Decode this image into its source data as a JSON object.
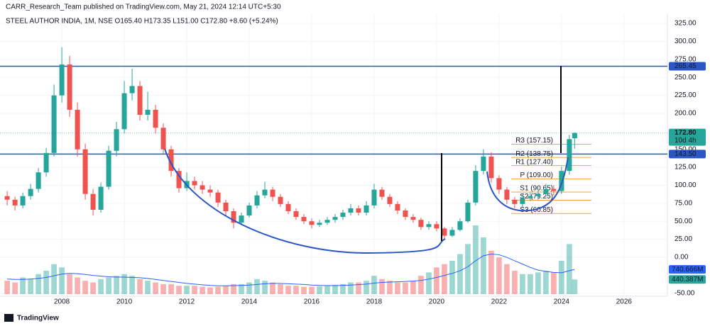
{
  "chart_data": {
    "type": "candlestick",
    "header": "CARR_Research_Team published on TradingView.com, May 21, 2024 12:14 UTC+5:30",
    "title": "STEEL AUTHOR INDIA, 1M, NSE  O165.40  H173.35  L151.00  C172.80  +8.60 (+5.24%)",
    "brand": "TradingView",
    "x": [
      2006.25,
      2006.5,
      2006.75,
      2007,
      2007.25,
      2007.5,
      2007.75,
      2008,
      2008.25,
      2008.5,
      2008.75,
      2009,
      2009.25,
      2009.5,
      2009.75,
      2010,
      2010.25,
      2010.5,
      2010.75,
      2011,
      2011.25,
      2011.5,
      2011.75,
      2012,
      2012.25,
      2012.5,
      2012.75,
      2013,
      2013.25,
      2013.5,
      2013.75,
      2014,
      2014.25,
      2014.5,
      2014.75,
      2015,
      2015.25,
      2015.5,
      2015.75,
      2016,
      2016.25,
      2016.5,
      2016.75,
      2017,
      2017.25,
      2017.5,
      2017.75,
      2018,
      2018.25,
      2018.5,
      2018.75,
      2019,
      2019.25,
      2019.5,
      2019.75,
      2020,
      2020.25,
      2020.5,
      2020.75,
      2021,
      2021.25,
      2021.5,
      2021.75,
      2022,
      2022.25,
      2022.5,
      2022.75,
      2023,
      2023.25,
      2023.5,
      2023.75,
      2024,
      2024.25,
      2024.42
    ],
    "open": [
      85,
      80,
      72,
      85,
      95,
      118,
      145,
      225,
      268,
      205,
      150,
      88,
      66,
      98,
      148,
      178,
      228,
      238,
      198,
      205,
      180,
      150,
      120,
      96,
      106,
      100,
      94,
      90,
      76,
      64,
      48,
      58,
      72,
      86,
      94,
      84,
      74,
      64,
      56,
      50,
      45,
      48,
      52,
      56,
      62,
      68,
      62,
      72,
      94,
      84,
      74,
      65,
      56,
      52,
      42,
      46,
      40,
      30,
      38,
      50,
      76,
      120,
      140,
      110,
      94,
      80,
      74,
      82,
      85,
      88,
      95,
      92,
      120,
      165.4
    ],
    "high": [
      92,
      84,
      90,
      102,
      124,
      152,
      240,
      292,
      280,
      215,
      158,
      95,
      104,
      155,
      188,
      245,
      262,
      245,
      230,
      212,
      186,
      155,
      124,
      118,
      112,
      106,
      100,
      94,
      80,
      68,
      62,
      76,
      92,
      105,
      98,
      88,
      78,
      68,
      60,
      54,
      52,
      56,
      60,
      66,
      74,
      72,
      78,
      102,
      98,
      88,
      78,
      68,
      60,
      55,
      50,
      50,
      42,
      42,
      54,
      80,
      128,
      150,
      146,
      114,
      98,
      84,
      88,
      90,
      94,
      102,
      100,
      126,
      170,
      173.35
    ],
    "low": [
      72,
      65,
      68,
      80,
      90,
      112,
      140,
      215,
      195,
      140,
      80,
      58,
      62,
      94,
      140,
      172,
      218,
      190,
      190,
      172,
      144,
      112,
      90,
      92,
      94,
      88,
      84,
      70,
      58,
      40,
      45,
      55,
      68,
      82,
      78,
      70,
      60,
      52,
      46,
      40,
      42,
      45,
      48,
      52,
      58,
      58,
      58,
      68,
      80,
      70,
      60,
      52,
      48,
      38,
      38,
      36,
      24,
      28,
      36,
      48,
      72,
      115,
      104,
      88,
      74,
      68,
      70,
      78,
      80,
      84,
      86,
      88,
      115,
      151
    ],
    "close": [
      80,
      72,
      85,
      95,
      118,
      145,
      225,
      268,
      205,
      150,
      88,
      66,
      98,
      148,
      178,
      228,
      238,
      198,
      205,
      180,
      150,
      120,
      96,
      106,
      100,
      94,
      90,
      76,
      64,
      48,
      58,
      72,
      86,
      94,
      84,
      74,
      64,
      56,
      50,
      45,
      48,
      52,
      56,
      62,
      68,
      62,
      72,
      94,
      84,
      74,
      65,
      56,
      52,
      42,
      46,
      40,
      30,
      38,
      50,
      76,
      120,
      140,
      110,
      94,
      80,
      74,
      82,
      85,
      88,
      95,
      92,
      120,
      164.2,
      172.8
    ],
    "volume": [
      400,
      350,
      500,
      450,
      600,
      700,
      900,
      800,
      600,
      500,
      400,
      350,
      450,
      500,
      550,
      600,
      550,
      450,
      400,
      350,
      300,
      300,
      250,
      250,
      250,
      220,
      200,
      220,
      250,
      300,
      300,
      350,
      450,
      400,
      350,
      300,
      250,
      250,
      220,
      220,
      230,
      250,
      280,
      300,
      350,
      350,
      400,
      550,
      450,
      400,
      350,
      350,
      400,
      550,
      650,
      800,
      900,
      1000,
      1200,
      1500,
      2060,
      1700,
      1300,
      1100,
      900,
      700,
      600,
      600,
      650,
      700,
      650,
      1000,
      1500,
      440.387
    ],
    "volume_ma": [
      450,
      440,
      440,
      450,
      470,
      500,
      550,
      600,
      620,
      610,
      590,
      560,
      540,
      520,
      510,
      510,
      500,
      490,
      470,
      440,
      410,
      380,
      350,
      320,
      300,
      280,
      260,
      250,
      250,
      255,
      260,
      270,
      290,
      310,
      320,
      320,
      310,
      300,
      290,
      270,
      260,
      255,
      255,
      260,
      270,
      285,
      300,
      330,
      350,
      360,
      370,
      380,
      390,
      410,
      450,
      500,
      560,
      620,
      700,
      820,
      1000,
      1150,
      1200,
      1180,
      1100,
      1000,
      900,
      800,
      720,
      680,
      650,
      640,
      700,
      740.666
    ],
    "volume_label": "440.387M",
    "volume_ma_label": "740.666M",
    "up_color": "#26a69a",
    "down_color": "#ef5350",
    "last_price_label": "172.80",
    "countdown": "10d 4h",
    "levels": [
      {
        "value": 265.45,
        "label": "265.45"
      },
      {
        "value": 143.5,
        "label": "143.50"
      }
    ],
    "level_color": "#2a56c6",
    "pivots": [
      {
        "value": 157.15,
        "label": "R3 (157.15)"
      },
      {
        "value": 138.75,
        "label": "R2 (138.75)"
      },
      {
        "value": 127.4,
        "label": "R1 (127.40)"
      },
      {
        "value": 109,
        "label": "P (109.00)"
      },
      {
        "value": 90.65,
        "label": "S1 (90.65)"
      },
      {
        "value": 79.25,
        "label": "S2 (79.25)"
      },
      {
        "value": 60.85,
        "label": "S3 (60.85)"
      }
    ],
    "pivot_color": "#f7a23b",
    "xlim": [
      2006.02,
      2027.39
    ],
    "xticks": [
      2008,
      2010,
      2012,
      2014,
      2016,
      2018,
      2020,
      2022,
      2024,
      2026
    ],
    "ylim": [
      -54.2,
      337.9
    ],
    "yticks": [
      {
        "value": 325,
        "label": "325.00"
      },
      {
        "value": 300,
        "label": "300.00"
      },
      {
        "value": 275,
        "label": "275.00"
      },
      {
        "value": 250,
        "label": "250.00"
      },
      {
        "value": 225,
        "label": "225.00"
      },
      {
        "value": 200,
        "label": "200.00"
      },
      {
        "value": 150,
        "label": "150.00"
      },
      {
        "value": 125,
        "label": "125.00"
      },
      {
        "value": 100,
        "label": "100.00"
      },
      {
        "value": 75,
        "label": "75.00"
      },
      {
        "value": 50,
        "label": "50.00"
      },
      {
        "value": 25,
        "label": "25.00"
      },
      {
        "value": 0,
        "label": "0.00"
      },
      {
        "value": -50,
        "label": "-50.00"
      }
    ],
    "grid": true
  }
}
